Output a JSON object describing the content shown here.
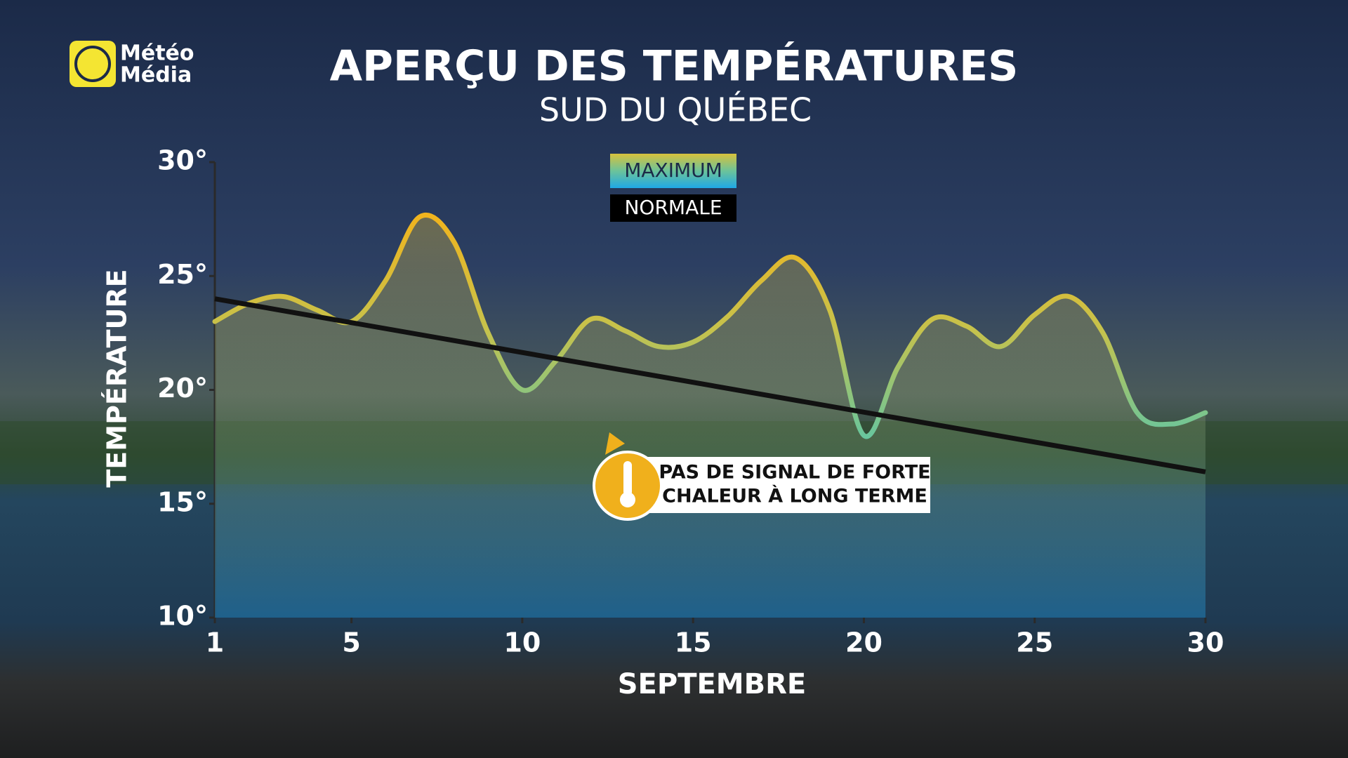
{
  "chart_data": {
    "type": "line",
    "brand": [
      "Météo",
      "Média"
    ],
    "title": "APERÇU DES TEMPÉRATURES",
    "subtitle": "SUD DU QUÉBEC",
    "y_label": "TEMPÉRATURE",
    "x_label": "SEPTEMBRE",
    "x": [
      1,
      2,
      3,
      4,
      5,
      6,
      7,
      8,
      9,
      10,
      11,
      12,
      13,
      14,
      15,
      16,
      17,
      18,
      19,
      20,
      21,
      22,
      23,
      24,
      25,
      26,
      27,
      28,
      29,
      30
    ],
    "series": [
      {
        "name": "MAXIMUM",
        "color": "#e9b525",
        "values": [
          23.0,
          23.8,
          24.1,
          23.5,
          23.0,
          24.8,
          27.6,
          26.5,
          22.5,
          20.0,
          21.3,
          23.1,
          22.6,
          21.9,
          22.1,
          23.2,
          24.8,
          25.8,
          23.5,
          18.0,
          21.0,
          23.1,
          22.8,
          21.9,
          23.3,
          24.1,
          22.5,
          19.0,
          18.5,
          19.0
        ]
      },
      {
        "name": "NORMALE",
        "color": "#111111",
        "x": [
          1,
          30
        ],
        "values": [
          24.0,
          16.4
        ]
      }
    ],
    "xlim": [
      1,
      30
    ],
    "xticks": [
      1,
      5,
      10,
      15,
      20,
      25,
      30
    ],
    "ylim": [
      10,
      30
    ],
    "yticks": [
      {
        "value": 10,
        "label": "10°"
      },
      {
        "value": 15,
        "label": "15°"
      },
      {
        "value": 20,
        "label": "20°"
      },
      {
        "value": 25,
        "label": "25°"
      },
      {
        "value": 30,
        "label": "30°"
      }
    ],
    "grid": false,
    "annotation": [
      "PAS DE SIGNAL DE FORTE",
      "CHALEUR À LONG TERME"
    ]
  }
}
